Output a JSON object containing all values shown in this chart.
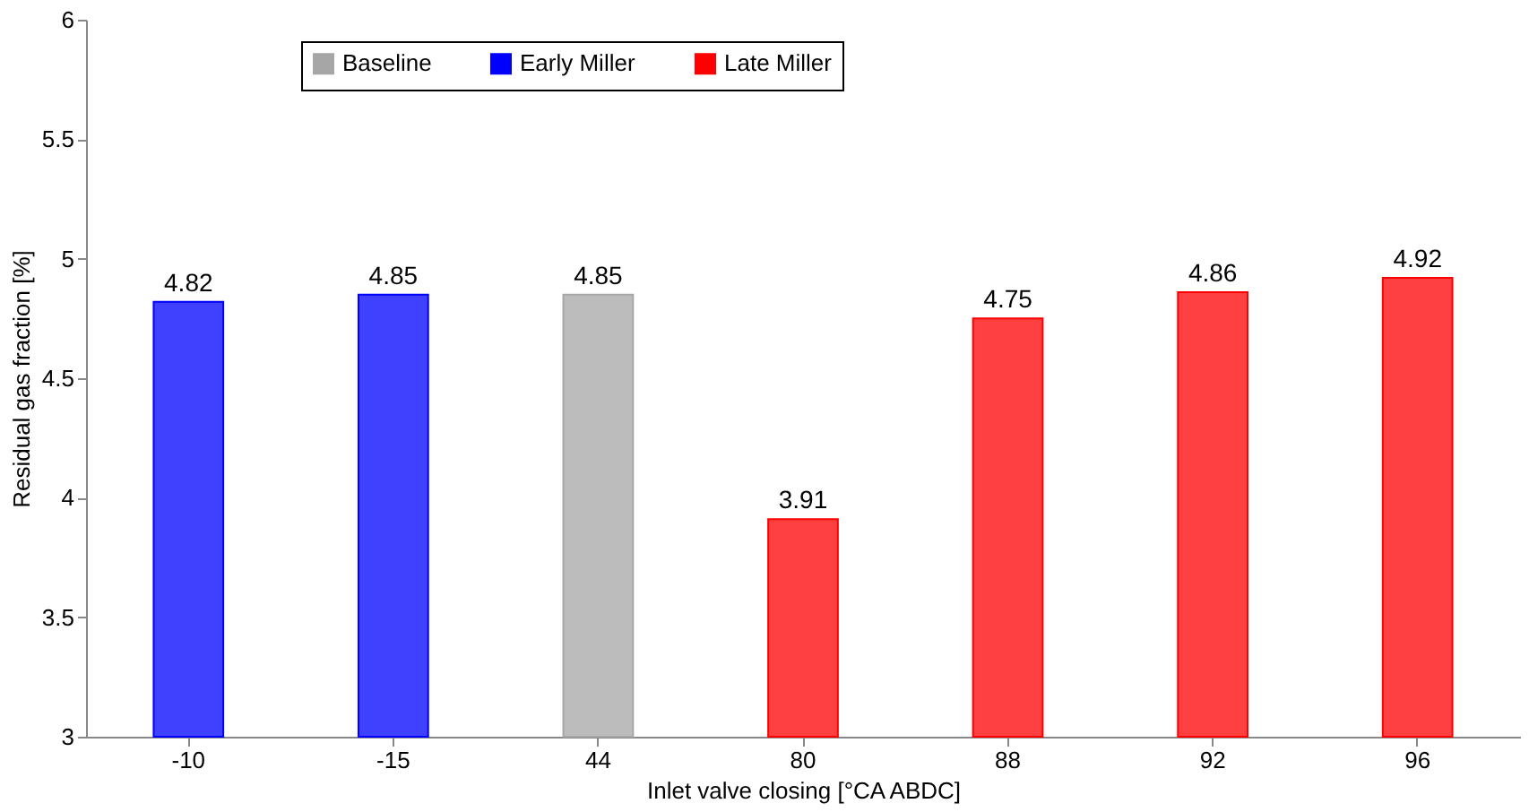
{
  "chart_data": {
    "type": "bar",
    "xlabel": "Inlet valve closing [°CA ABDC]",
    "ylabel": "Residual gas fraction [%]",
    "categories": [
      "-10",
      "-15",
      "44",
      "80",
      "88",
      "92",
      "96"
    ],
    "series": [
      {
        "name": "Baseline",
        "color": "#a6a6a6",
        "values": [
          null,
          null,
          4.85,
          null,
          null,
          null,
          null
        ]
      },
      {
        "name": "Early Miller",
        "color": "#0000ff",
        "values": [
          4.82,
          4.85,
          null,
          null,
          null,
          null,
          null
        ]
      },
      {
        "name": "Late Miller",
        "color": "#ff0000",
        "values": [
          null,
          null,
          null,
          3.91,
          4.75,
          4.86,
          4.92
        ]
      }
    ],
    "ylim": [
      3,
      6
    ],
    "yticks": [
      3,
      3.5,
      4,
      4.5,
      5,
      5.5,
      6
    ],
    "grid": false,
    "legend": "top",
    "data_labels": true
  }
}
